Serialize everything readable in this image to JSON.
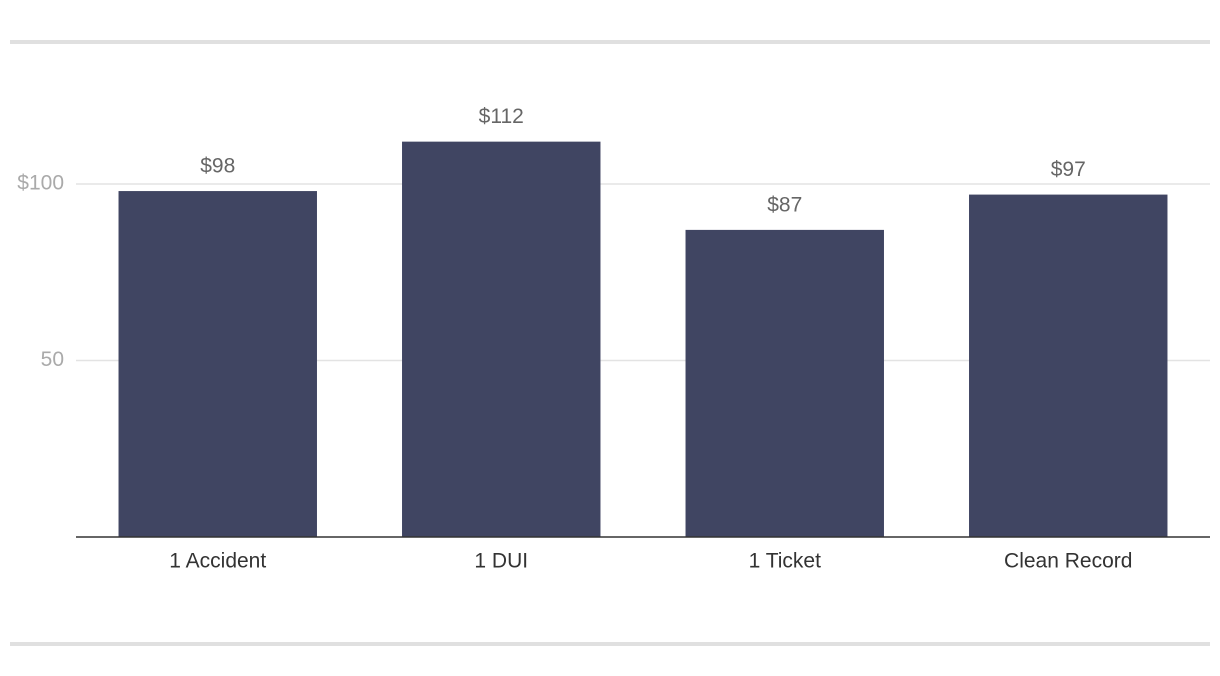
{
  "chart_data": {
    "type": "bar",
    "categories": [
      "1 Accident",
      "1 DUI",
      "1 Ticket",
      "Clean Record"
    ],
    "values": [
      98,
      112,
      87,
      97
    ],
    "value_labels": [
      "$98",
      "$112",
      "$87",
      "$97"
    ],
    "color": "#404562",
    "ylim": [
      0,
      120
    ],
    "yticks": [
      50,
      {
        "value": 100,
        "label": "$100"
      }
    ],
    "grid": true
  }
}
